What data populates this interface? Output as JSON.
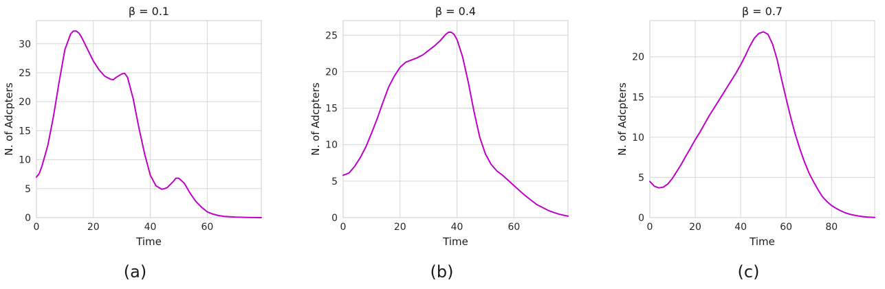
{
  "chart_data": [
    {
      "type": "line",
      "title": "β = 0.1",
      "panel_label": "(a)",
      "xlabel": "Time",
      "ylabel": "N. of Adcpters",
      "xlim": [
        0,
        79
      ],
      "ylim": [
        0,
        34
      ],
      "xticks": [
        0,
        20,
        40,
        60
      ],
      "yticks": [
        0,
        5,
        10,
        15,
        20,
        25,
        30
      ],
      "grid": true,
      "color": "#c000c8",
      "series": [
        {
          "x": [
            0,
            1,
            2,
            4,
            6,
            8,
            10,
            12,
            13,
            14,
            15,
            16,
            18,
            20,
            22,
            24,
            26,
            27,
            28,
            30,
            31,
            32,
            34,
            36,
            38,
            40,
            42,
            44,
            45,
            46,
            48,
            49,
            50,
            52,
            54,
            56,
            58,
            60,
            62,
            64,
            66,
            70,
            74,
            79
          ],
          "y": [
            7,
            7.6,
            9,
            12.5,
            17.5,
            23.5,
            29,
            31.7,
            32.2,
            32.2,
            31.8,
            31,
            29,
            27,
            25.5,
            24.4,
            23.9,
            23.8,
            24.2,
            24.8,
            24.9,
            24.2,
            20.5,
            15.5,
            11,
            7.3,
            5.5,
            4.9,
            5,
            5.2,
            6.2,
            6.8,
            6.8,
            5.9,
            4.2,
            2.8,
            1.8,
            1,
            0.6,
            0.35,
            0.2,
            0.08,
            0.03,
            0
          ]
        }
      ]
    },
    {
      "type": "line",
      "title": "β = 0.4",
      "panel_label": "(b)",
      "xlabel": "Time",
      "ylabel": "N. of Adcpters",
      "xlim": [
        0,
        79
      ],
      "ylim": [
        0,
        27
      ],
      "xticks": [
        0,
        20,
        40,
        60
      ],
      "yticks": [
        0,
        5,
        10,
        15,
        20,
        25
      ],
      "grid": true,
      "color": "#c000c8",
      "series": [
        {
          "x": [
            0,
            2,
            4,
            6,
            8,
            10,
            12,
            14,
            16,
            18,
            20,
            22,
            24,
            26,
            28,
            30,
            32,
            34,
            36,
            37,
            38,
            39,
            40,
            42,
            44,
            46,
            48,
            50,
            52,
            54,
            56,
            58,
            60,
            62,
            64,
            66,
            68,
            70,
            72,
            74,
            76,
            79
          ],
          "y": [
            5.8,
            6.1,
            7,
            8.2,
            9.7,
            11.6,
            13.6,
            15.8,
            17.9,
            19.4,
            20.6,
            21.3,
            21.6,
            21.9,
            22.3,
            22.9,
            23.5,
            24.2,
            25.1,
            25.4,
            25.4,
            25.1,
            24.4,
            22,
            18.5,
            14.5,
            11,
            8.7,
            7.3,
            6.4,
            5.8,
            5.1,
            4.4,
            3.7,
            3,
            2.4,
            1.8,
            1.4,
            1,
            0.7,
            0.45,
            0.2
          ]
        }
      ]
    },
    {
      "type": "line",
      "title": "β = 0.7",
      "panel_label": "(c)",
      "xlabel": "Time",
      "ylabel": "N. of Adcpters",
      "xlim": [
        0,
        99
      ],
      "ylim": [
        0,
        24.5
      ],
      "xticks": [
        0,
        20,
        40,
        60,
        80
      ],
      "yticks": [
        0,
        5,
        10,
        15,
        20
      ],
      "grid": true,
      "color": "#c000c8",
      "series": [
        {
          "x": [
            0,
            2,
            4,
            6,
            8,
            10,
            12,
            14,
            16,
            18,
            20,
            22,
            24,
            26,
            28,
            30,
            32,
            34,
            36,
            38,
            40,
            42,
            44,
            46,
            48,
            50,
            52,
            54,
            56,
            58,
            60,
            62,
            64,
            66,
            68,
            70,
            72,
            74,
            76,
            78,
            80,
            82,
            84,
            86,
            88,
            90,
            92,
            94,
            96,
            99
          ],
          "y": [
            4.5,
            3.9,
            3.7,
            3.8,
            4.2,
            4.9,
            5.8,
            6.7,
            7.7,
            8.7,
            9.7,
            10.6,
            11.6,
            12.6,
            13.5,
            14.4,
            15.3,
            16.2,
            17.1,
            18,
            19,
            20.1,
            21.3,
            22.3,
            22.9,
            23.1,
            22.8,
            21.6,
            19.7,
            17.2,
            14.8,
            12.5,
            10.4,
            8.6,
            7,
            5.6,
            4.5,
            3.5,
            2.6,
            2,
            1.5,
            1.15,
            0.85,
            0.6,
            0.42,
            0.3,
            0.2,
            0.12,
            0.07,
            0.02
          ]
        }
      ]
    }
  ]
}
